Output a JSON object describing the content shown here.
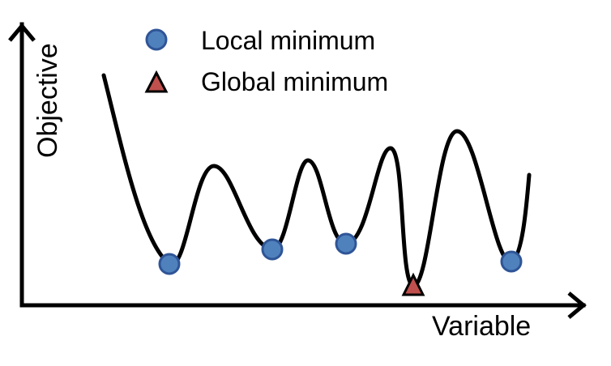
{
  "axes": {
    "x_label": "Variable",
    "y_label": "Objective"
  },
  "legend": {
    "items": [
      {
        "label": "Local minimum",
        "marker": "circle"
      },
      {
        "label": "Global minimum",
        "marker": "triangle"
      }
    ]
  },
  "colors": {
    "local_marker_fill": "#4F81BD",
    "local_marker_stroke": "#2F5597",
    "global_marker_fill": "#C0504D",
    "global_marker_stroke": "#000000",
    "curve": "#000000",
    "axis": "#000000"
  },
  "counts": {
    "local_minima": 5,
    "global_minima": 1
  }
}
